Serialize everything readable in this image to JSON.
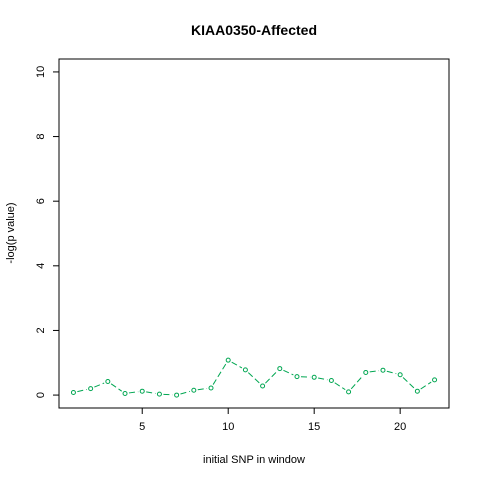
{
  "chart_data": {
    "type": "line",
    "title": "KIAA0350-Affected",
    "xlabel": "initial SNP in window",
    "ylabel": "-log(p value)",
    "xlim": [
      0.16,
      22.84
    ],
    "ylim": [
      -0.4,
      10.4
    ],
    "xticks": [
      5,
      10,
      15,
      20
    ],
    "yticks": [
      0,
      2,
      4,
      6,
      8,
      10
    ],
    "grid": false,
    "series": [
      {
        "color": "#00a651",
        "line_style": "dashed",
        "marker": "open-circle",
        "x": [
          1,
          2,
          3,
          4,
          5,
          6,
          7,
          8,
          9,
          10,
          11,
          12,
          13,
          14,
          15,
          16,
          17,
          18,
          19,
          20,
          21,
          22
        ],
        "values": [
          0.08,
          0.2,
          0.42,
          0.05,
          0.12,
          0.03,
          0.0,
          0.15,
          0.22,
          1.08,
          0.78,
          0.28,
          0.82,
          0.57,
          0.55,
          0.45,
          0.1,
          0.7,
          0.77,
          0.63,
          0.12,
          0.47
        ]
      }
    ]
  }
}
